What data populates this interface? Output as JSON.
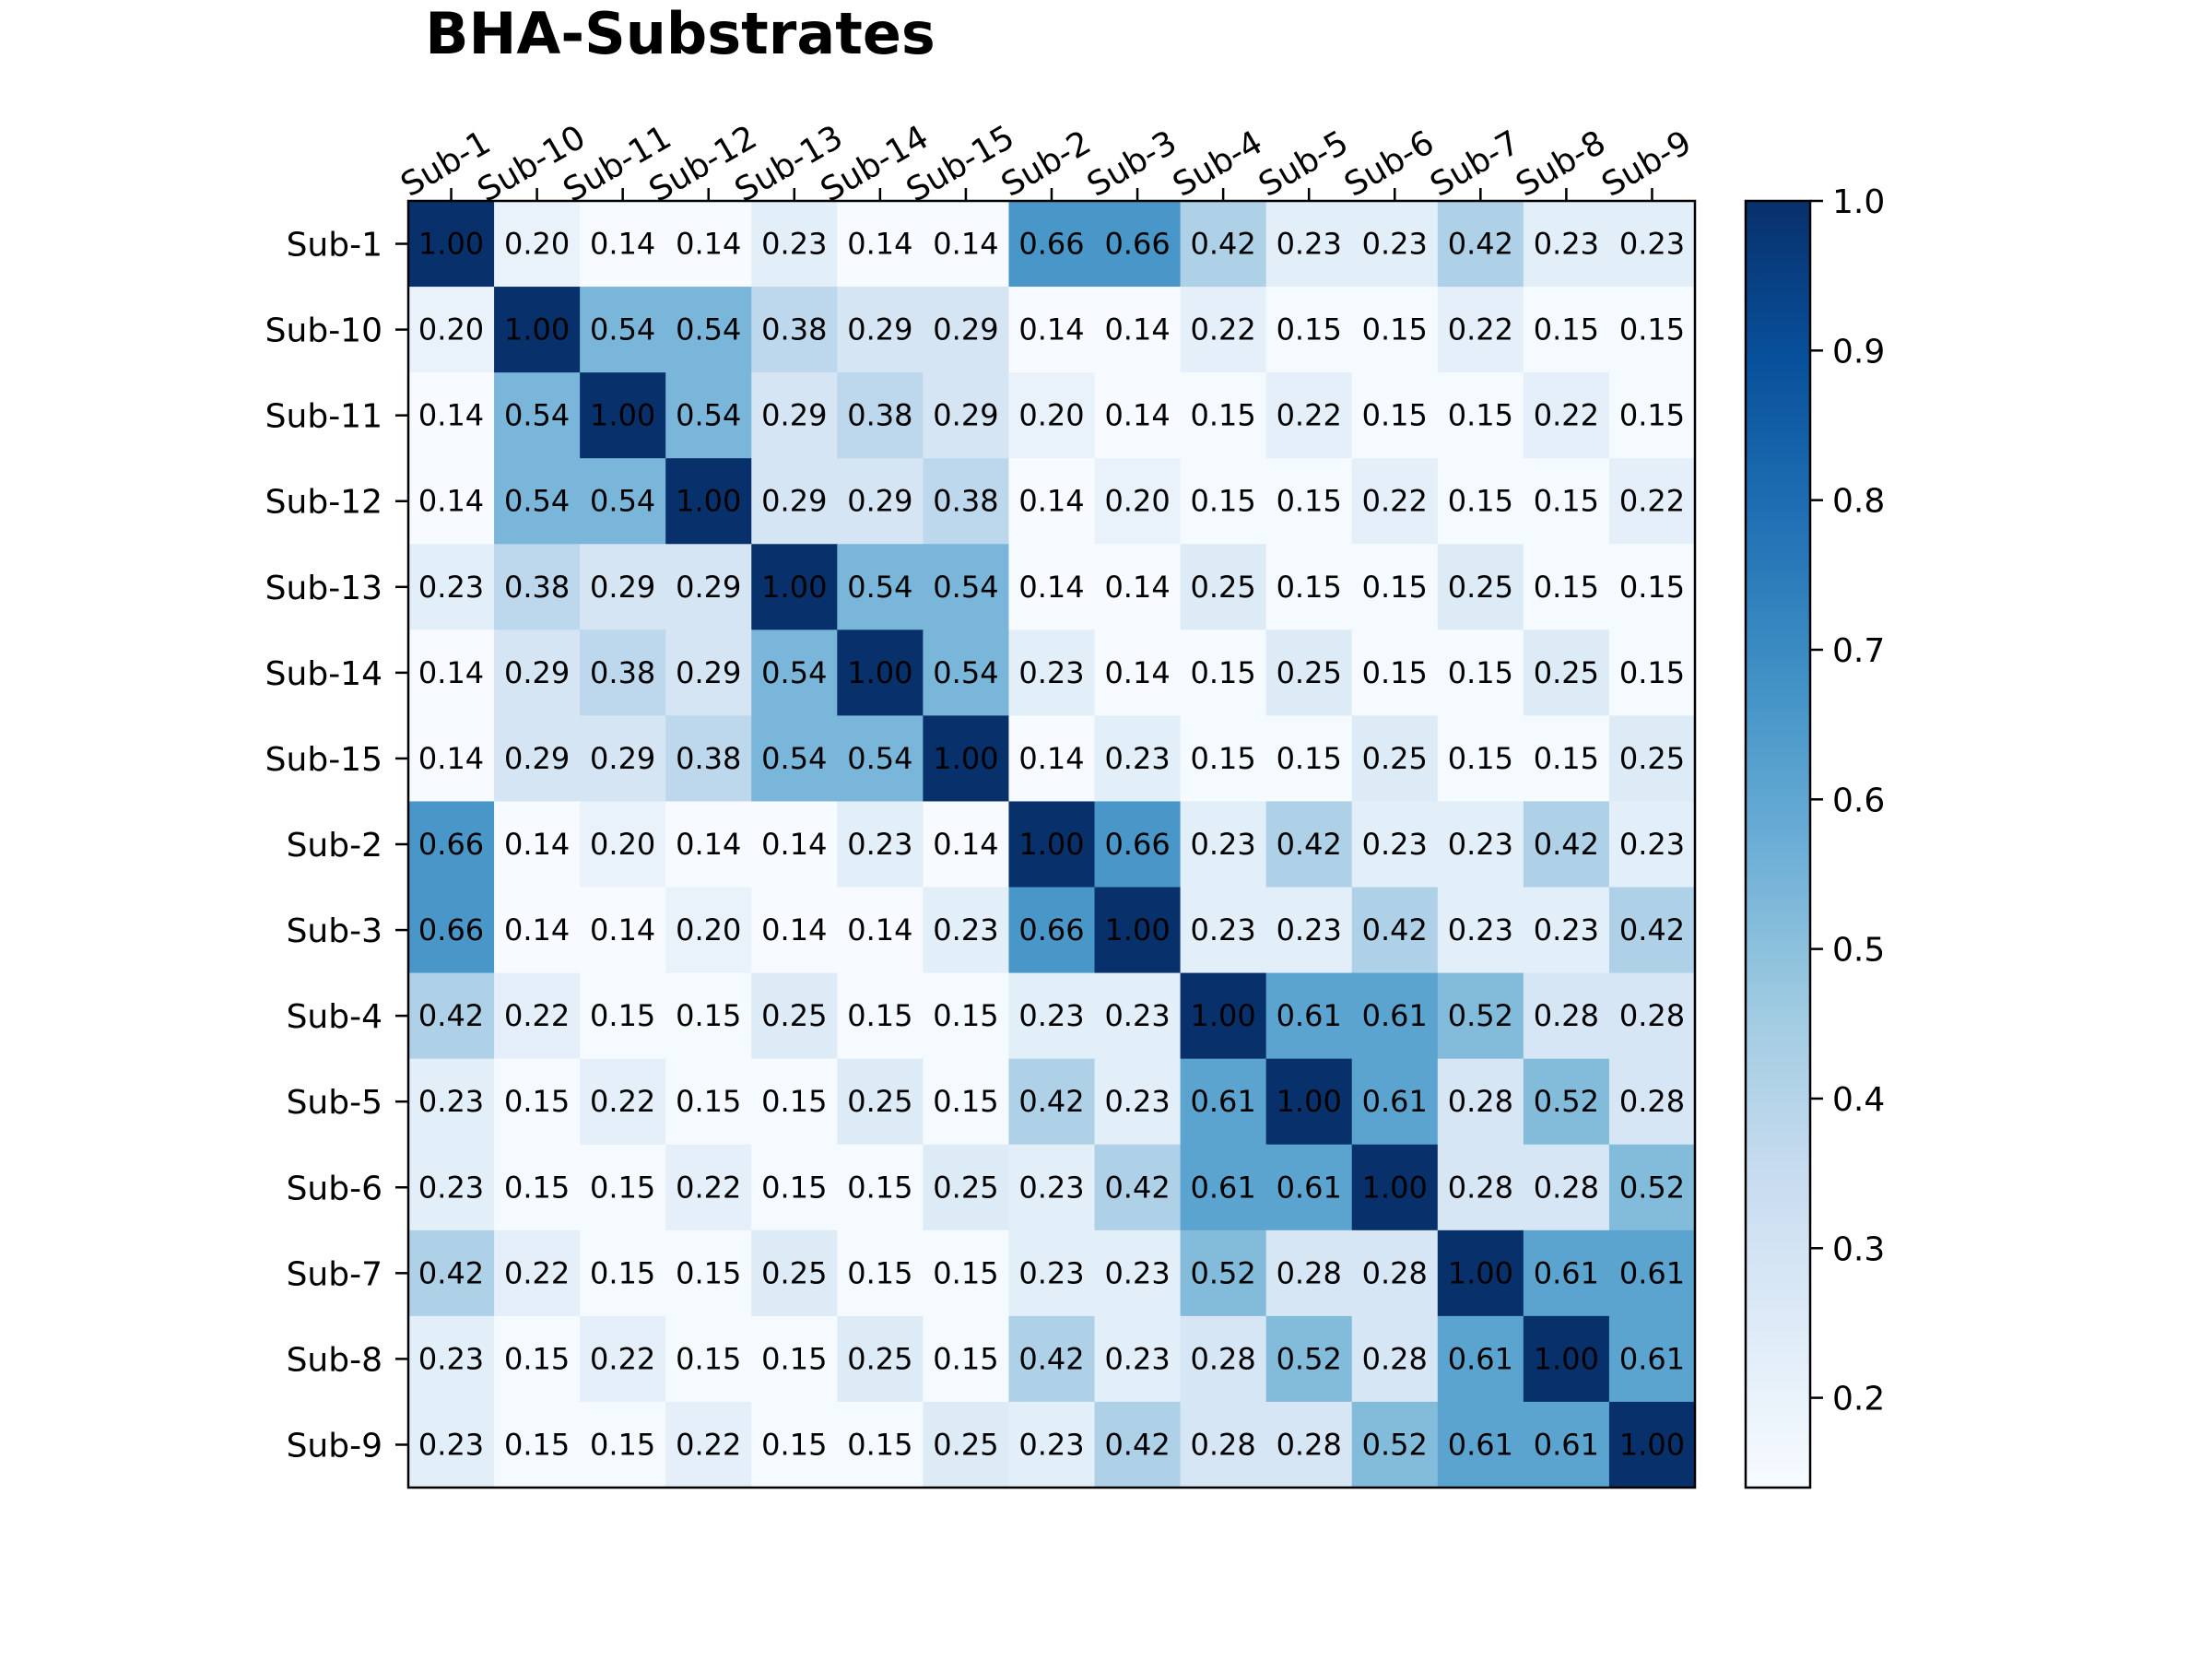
{
  "chart_data": {
    "type": "heatmap",
    "title": "BHA-Substrates",
    "xlabel": "",
    "ylabel": "",
    "categories": [
      "Sub-1",
      "Sub-10",
      "Sub-11",
      "Sub-12",
      "Sub-13",
      "Sub-14",
      "Sub-15",
      "Sub-2",
      "Sub-3",
      "Sub-4",
      "Sub-5",
      "Sub-6",
      "Sub-7",
      "Sub-8",
      "Sub-9"
    ],
    "matrix": [
      [
        1.0,
        0.2,
        0.14,
        0.14,
        0.23,
        0.14,
        0.14,
        0.66,
        0.66,
        0.42,
        0.23,
        0.23,
        0.42,
        0.23,
        0.23
      ],
      [
        0.2,
        1.0,
        0.54,
        0.54,
        0.38,
        0.29,
        0.29,
        0.14,
        0.14,
        0.22,
        0.15,
        0.15,
        0.22,
        0.15,
        0.15
      ],
      [
        0.14,
        0.54,
        1.0,
        0.54,
        0.29,
        0.38,
        0.29,
        0.2,
        0.14,
        0.15,
        0.22,
        0.15,
        0.15,
        0.22,
        0.15
      ],
      [
        0.14,
        0.54,
        0.54,
        1.0,
        0.29,
        0.29,
        0.38,
        0.14,
        0.2,
        0.15,
        0.15,
        0.22,
        0.15,
        0.15,
        0.22
      ],
      [
        0.23,
        0.38,
        0.29,
        0.29,
        1.0,
        0.54,
        0.54,
        0.14,
        0.14,
        0.25,
        0.15,
        0.15,
        0.25,
        0.15,
        0.15
      ],
      [
        0.14,
        0.29,
        0.38,
        0.29,
        0.54,
        1.0,
        0.54,
        0.23,
        0.14,
        0.15,
        0.25,
        0.15,
        0.15,
        0.25,
        0.15
      ],
      [
        0.14,
        0.29,
        0.29,
        0.38,
        0.54,
        0.54,
        1.0,
        0.14,
        0.23,
        0.15,
        0.15,
        0.25,
        0.15,
        0.15,
        0.25
      ],
      [
        0.66,
        0.14,
        0.2,
        0.14,
        0.14,
        0.23,
        0.14,
        1.0,
        0.66,
        0.23,
        0.42,
        0.23,
        0.23,
        0.42,
        0.23
      ],
      [
        0.66,
        0.14,
        0.14,
        0.2,
        0.14,
        0.14,
        0.23,
        0.66,
        1.0,
        0.23,
        0.23,
        0.42,
        0.23,
        0.23,
        0.42
      ],
      [
        0.42,
        0.22,
        0.15,
        0.15,
        0.25,
        0.15,
        0.15,
        0.23,
        0.23,
        1.0,
        0.61,
        0.61,
        0.52,
        0.28,
        0.28
      ],
      [
        0.23,
        0.15,
        0.22,
        0.15,
        0.15,
        0.25,
        0.15,
        0.42,
        0.23,
        0.61,
        1.0,
        0.61,
        0.28,
        0.52,
        0.28
      ],
      [
        0.23,
        0.15,
        0.15,
        0.22,
        0.15,
        0.15,
        0.25,
        0.23,
        0.42,
        0.61,
        0.61,
        1.0,
        0.28,
        0.28,
        0.52
      ],
      [
        0.42,
        0.22,
        0.15,
        0.15,
        0.25,
        0.15,
        0.15,
        0.23,
        0.23,
        0.52,
        0.28,
        0.28,
        1.0,
        0.61,
        0.61
      ],
      [
        0.23,
        0.15,
        0.22,
        0.15,
        0.15,
        0.25,
        0.15,
        0.42,
        0.23,
        0.28,
        0.52,
        0.28,
        0.61,
        1.0,
        0.61
      ],
      [
        0.23,
        0.15,
        0.15,
        0.22,
        0.15,
        0.15,
        0.25,
        0.23,
        0.42,
        0.28,
        0.28,
        0.52,
        0.61,
        0.61,
        1.0
      ]
    ],
    "value_format": "2 decimals",
    "colormap": "Blues",
    "colormap_stops": [
      "#f7fbff",
      "#deebf7",
      "#c6dbef",
      "#9ecae1",
      "#6baed6",
      "#4292c6",
      "#2171b5",
      "#08519c",
      "#08306b"
    ],
    "color_range": [
      0.14,
      1.0
    ],
    "colorbar_ticks": [
      0.2,
      0.3,
      0.4,
      0.5,
      0.6,
      0.7,
      0.8,
      0.9,
      1.0
    ],
    "colorbar_tick_labels": [
      "0.2",
      "0.3",
      "0.4",
      "0.5",
      "0.6",
      "0.7",
      "0.8",
      "0.9",
      "1.0"
    ],
    "x_tick_position": "top",
    "grid": false,
    "legend": "colorbar-right"
  }
}
